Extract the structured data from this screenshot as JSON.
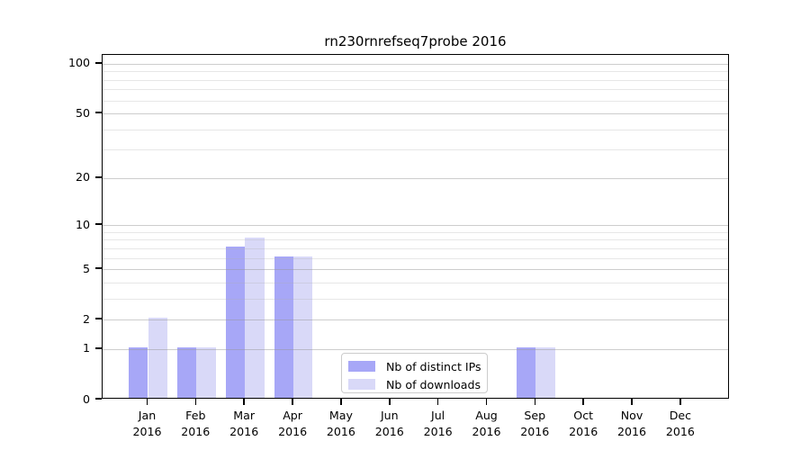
{
  "title": "rn230rnrefseq7probe 2016",
  "chart_data": {
    "type": "bar",
    "title": "rn230rnrefseq7probe 2016",
    "x_categories": [
      {
        "month": "Jan",
        "year": "2016"
      },
      {
        "month": "Feb",
        "year": "2016"
      },
      {
        "month": "Mar",
        "year": "2016"
      },
      {
        "month": "Apr",
        "year": "2016"
      },
      {
        "month": "May",
        "year": "2016"
      },
      {
        "month": "Jun",
        "year": "2016"
      },
      {
        "month": "Jul",
        "year": "2016"
      },
      {
        "month": "Aug",
        "year": "2016"
      },
      {
        "month": "Sep",
        "year": "2016"
      },
      {
        "month": "Oct",
        "year": "2016"
      },
      {
        "month": "Nov",
        "year": "2016"
      },
      {
        "month": "Dec",
        "year": "2016"
      }
    ],
    "series": [
      {
        "name": "Nb of distinct IPs",
        "color": "#a7a7f7",
        "values": [
          1,
          1,
          7,
          6,
          0,
          0,
          0,
          0,
          1,
          0,
          0,
          0
        ]
      },
      {
        "name": "Nb of downloads",
        "color": "#d9d9f8",
        "values": [
          2,
          1,
          8,
          6,
          0,
          0,
          0,
          0,
          1,
          0,
          0,
          0
        ]
      }
    ],
    "y_axis": {
      "scale": "log10(1+v)",
      "ticks": [
        0,
        1,
        2,
        5,
        10,
        20,
        50,
        100
      ],
      "minor_ticks": [
        3,
        4,
        6,
        7,
        8,
        9,
        30,
        40,
        60,
        70,
        80,
        90
      ],
      "ylim": [
        0,
        113
      ]
    },
    "xlabel": "",
    "ylabel": "",
    "grid": true,
    "legend": {
      "position": "lower center"
    }
  }
}
